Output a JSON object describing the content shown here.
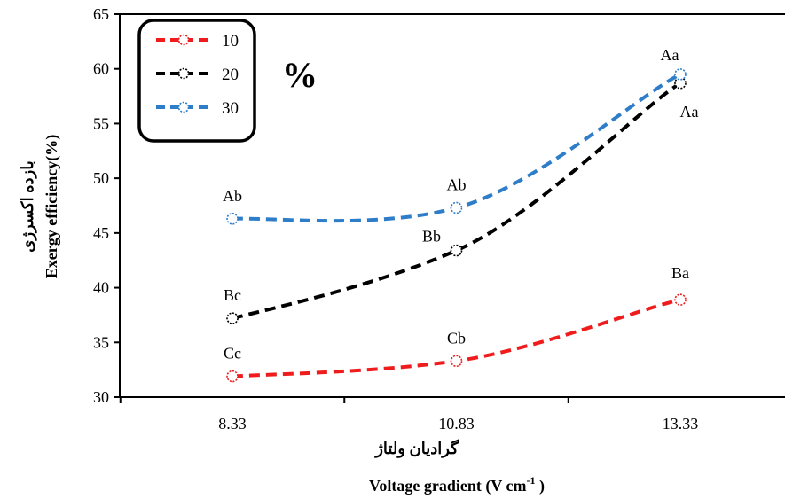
{
  "chart_data": {
    "type": "line",
    "x": [
      8.33,
      10.83,
      13.33
    ],
    "categories": [
      "8.33",
      "10.83",
      "13.33"
    ],
    "ylim": [
      30,
      65
    ],
    "yticks": [
      30,
      35,
      40,
      45,
      50,
      55,
      60,
      65
    ],
    "grid": false,
    "legend_position": "top-left",
    "xlabel_fa": "گرادیان ولتاژ",
    "xlabel_en_prefix": "Voltage gradient (V cm",
    "xlabel_en_sup": "-1",
    "xlabel_en_suffix": " )",
    "ylabel_fa": "بازده اکسرژی",
    "ylabel_en": "Exergy efficiency(%)",
    "legend_unit": "%",
    "series": [
      {
        "name": "10",
        "color": "#ee1c1c",
        "values": [
          31.9,
          33.3,
          38.9
        ],
        "labels": [
          "Cc",
          "Cb",
          "Ba"
        ]
      },
      {
        "name": "20",
        "color": "#000000",
        "values": [
          37.2,
          43.4,
          58.7
        ],
        "labels": [
          "Bc",
          "Bb",
          "Aa"
        ]
      },
      {
        "name": "30",
        "color": "#2e7dc8",
        "values": [
          46.3,
          47.3,
          59.5
        ],
        "labels": [
          "Ab",
          "Ab",
          "Aa"
        ]
      }
    ]
  }
}
